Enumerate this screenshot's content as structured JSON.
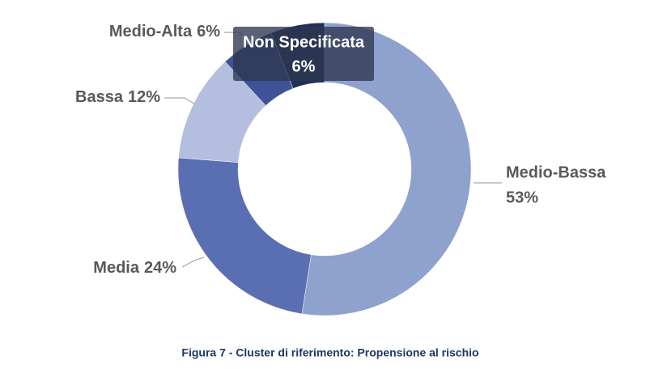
{
  "chart_data": {
    "type": "donut",
    "categories": [
      "Medio-Bassa",
      "Media",
      "Bassa",
      "Medio-Alta",
      "Non Specificata"
    ],
    "values": [
      53,
      24,
      12,
      6,
      6
    ],
    "value_labels": [
      "53%",
      "24%",
      "12%",
      "6%",
      "6%"
    ],
    "colors": [
      "#8fa1cd",
      "#5a6eb2",
      "#b4bfdf",
      "#3e5298",
      "#223056"
    ],
    "caption": "Figura 7 - Cluster di riferimento: Propensione al rischio"
  }
}
